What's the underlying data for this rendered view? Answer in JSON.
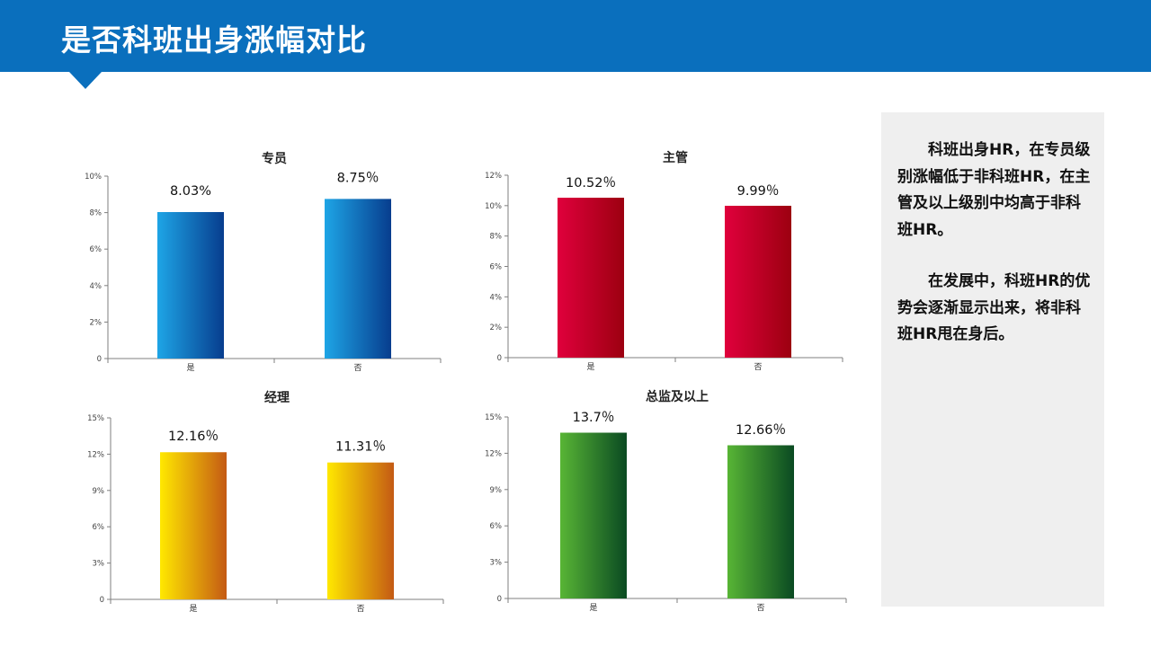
{
  "page": {
    "title": "是否科班出身涨幅对比"
  },
  "side_panel": {
    "paragraphs": [
      "科班出身HR，在专员级别涨幅低于非科班HR，在主管及以上级别中均高于非科班HR。",
      "在发展中，科班HR的优势会逐渐显示出来，将非科班HR甩在身后。"
    ]
  },
  "chart_data": [
    {
      "type": "bar",
      "title": "专员",
      "categories": [
        "是",
        "否"
      ],
      "values": [
        8.03,
        8.75
      ],
      "data_labels": [
        "8.03%",
        "8.75％"
      ],
      "ylim": [
        0,
        10
      ],
      "yticks": [
        "0",
        "2%",
        "4%",
        "6%",
        "8%",
        "10%"
      ],
      "colors": [
        "#1ea5e6",
        "#073d8e"
      ],
      "grid": false
    },
    {
      "type": "bar",
      "title": "主管",
      "categories": [
        "是",
        "否"
      ],
      "values": [
        10.52,
        9.99
      ],
      "data_labels": [
        "10.52％",
        "9.99％"
      ],
      "ylim": [
        0,
        12
      ],
      "yticks": [
        "0",
        "2%",
        "4%",
        "6%",
        "8%",
        "10%",
        "12%"
      ],
      "colors": [
        "#e0003c",
        "#9c0010"
      ],
      "grid": false
    },
    {
      "type": "bar",
      "title": "经理",
      "categories": [
        "是",
        "否"
      ],
      "values": [
        12.16,
        11.31
      ],
      "data_labels": [
        "12.16％",
        "11.31％"
      ],
      "ylim": [
        0,
        15
      ],
      "yticks": [
        "0",
        "3%",
        "6%",
        "9%",
        "12%",
        "15%"
      ],
      "colors": [
        "#ffe800",
        "#c45a14"
      ],
      "grid": false
    },
    {
      "type": "bar",
      "title": "总监及以上",
      "categories": [
        "是",
        "否"
      ],
      "values": [
        13.7,
        12.66
      ],
      "data_labels": [
        "13.7％",
        "12.66％"
      ],
      "ylim": [
        0,
        15
      ],
      "yticks": [
        "0",
        "3%",
        "6%",
        "9%",
        "12%",
        "15%"
      ],
      "colors": [
        "#58b535",
        "#0a4a22"
      ],
      "grid": false
    }
  ]
}
